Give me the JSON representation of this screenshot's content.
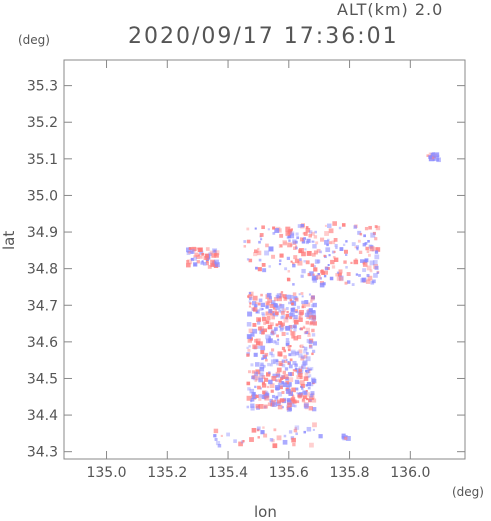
{
  "header": {
    "altitude_label": "ALT(km) 2.0",
    "timestamp": "2020/09/17 17:36:01"
  },
  "axes": {
    "y_unit": "(deg)",
    "x_unit": "(deg)",
    "x_label": "lon",
    "y_label": "lat",
    "x_ticks": [
      "135.0",
      "135.2",
      "135.4",
      "135.6",
      "135.8",
      "136.0"
    ],
    "y_ticks": [
      "34.3",
      "34.4",
      "34.5",
      "34.6",
      "34.7",
      "34.8",
      "34.9",
      "35.0",
      "35.1",
      "35.2",
      "35.3"
    ]
  },
  "colors": {
    "approaching": "#8a8aff",
    "receding": "#ff7a7a",
    "frame": "#888888"
  },
  "map": {
    "lon_range": [
      134.86,
      136.18
    ],
    "lat_range": [
      34.28,
      35.37
    ],
    "echo_clusters": [
      {
        "name": "main-cell",
        "lon": [
          135.46,
          135.68
        ],
        "lat": [
          34.42,
          34.74
        ],
        "count": 520
      },
      {
        "name": "west-patch",
        "lon": [
          135.26,
          135.36
        ],
        "lat": [
          34.81,
          34.86
        ],
        "count": 60
      },
      {
        "name": "north-band",
        "lon": [
          135.58,
          135.89
        ],
        "lat": [
          34.76,
          34.93
        ],
        "count": 200
      },
      {
        "name": "mid-band",
        "lon": [
          135.45,
          135.62
        ],
        "lat": [
          34.8,
          34.92
        ],
        "count": 50
      },
      {
        "name": "south-line",
        "lon": [
          135.35,
          135.72
        ],
        "lat": [
          34.32,
          34.38
        ],
        "count": 40
      },
      {
        "name": "ne-patch",
        "lon": [
          136.05,
          136.09
        ],
        "lat": [
          35.1,
          35.12
        ],
        "count": 18
      },
      {
        "name": "east-dot",
        "lon": [
          135.77,
          135.79
        ],
        "lat": [
          34.34,
          34.35
        ],
        "count": 6
      }
    ]
  }
}
